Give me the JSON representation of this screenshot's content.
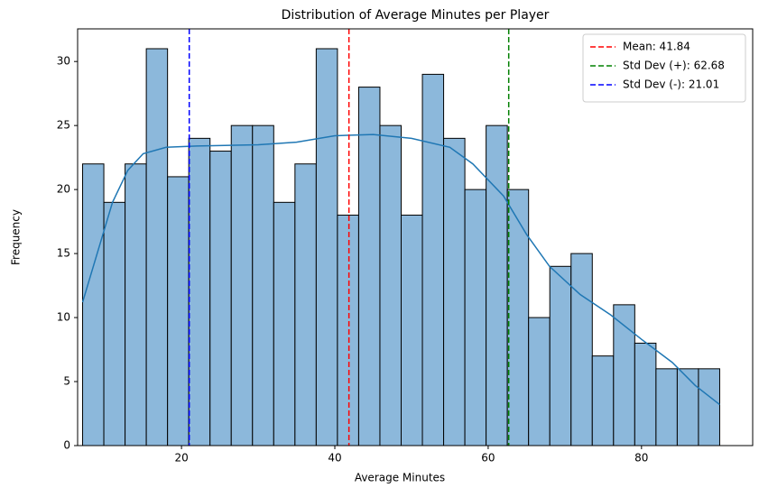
{
  "chart_data": {
    "type": "histogram",
    "title": "Distribution of Average Minutes per Player",
    "xlabel": "Average Minutes",
    "ylabel": "Frequency",
    "bins": [
      7.1,
      9.87,
      12.64,
      15.41,
      18.18,
      20.95,
      23.72,
      26.49,
      29.26,
      32.03,
      34.8,
      37.57,
      40.34,
      43.11,
      45.88,
      48.65,
      51.42,
      54.19,
      56.96,
      59.73,
      62.5,
      65.27,
      68.04,
      70.81,
      73.58,
      76.35,
      79.12,
      81.89,
      84.66,
      87.43,
      90.2
    ],
    "values": [
      22,
      19,
      22,
      31,
      21,
      24,
      23,
      25,
      25,
      19,
      22,
      31,
      18,
      28,
      25,
      18,
      29,
      24,
      20,
      25,
      20,
      10,
      14,
      15,
      7,
      11,
      8,
      6,
      6,
      6
    ],
    "color": "#8cb8db",
    "kde": {
      "color": "#1f77b4",
      "x": [
        7.1,
        9,
        11,
        13,
        15,
        18,
        22,
        30,
        35,
        40,
        45,
        50,
        55,
        58,
        62,
        65,
        68,
        72,
        76,
        80,
        84,
        87,
        90.2
      ],
      "y": [
        11.2,
        15,
        19,
        21.5,
        22.8,
        23.3,
        23.4,
        23.5,
        23.7,
        24.2,
        24.3,
        24.0,
        23.3,
        22,
        19.5,
        16.5,
        14,
        11.8,
        10.2,
        8.3,
        6.5,
        4.7,
        3.2
      ]
    },
    "vlines": [
      {
        "name": "Mean: 41.84",
        "value": 41.84,
        "color": "#ff0000"
      },
      {
        "name": "Std Dev (+): 62.68",
        "value": 62.68,
        "color": "#008000"
      },
      {
        "name": "Std Dev (-): 21.01",
        "value": 21.01,
        "color": "#0000ff"
      }
    ],
    "xlim": [
      6.45,
      94.5
    ],
    "xticks": [
      20,
      40,
      60,
      80
    ],
    "ylim": [
      0,
      32.55
    ],
    "yticks": [
      0,
      5,
      10,
      15,
      20,
      25,
      30
    ],
    "legend": "upper right"
  }
}
